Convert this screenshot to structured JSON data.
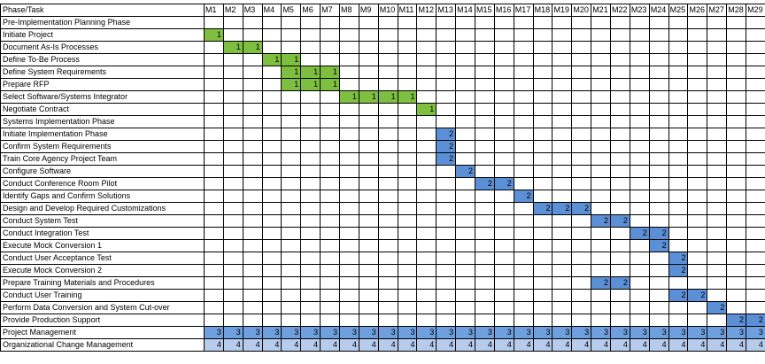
{
  "header": {
    "phase_task": "Phase/Task",
    "months": [
      "M1",
      "M2",
      "M3",
      "M4",
      "M5",
      "M6",
      "M7",
      "M8",
      "M9",
      "M10",
      "M11",
      "M12",
      "M13",
      "M14",
      "M15",
      "M16",
      "M17",
      "M18",
      "M19",
      "M20",
      "M21",
      "M22",
      "M23",
      "M24",
      "M25",
      "M26",
      "M27",
      "M28",
      "M29"
    ]
  },
  "colors": {
    "1": "#7fbf3f",
    "2": "#5b8fd6",
    "3": "#6e9fde",
    "4": "#b7ccec"
  },
  "rows": [
    {
      "label": "Pre-Implementation Planning Phase",
      "type": "phase"
    },
    {
      "label": "Initiate Project",
      "cells": [
        [
          1,
          "1"
        ]
      ]
    },
    {
      "label": "Document As-Is Processes",
      "cells": [
        [
          2,
          "1"
        ],
        [
          3,
          "1"
        ]
      ]
    },
    {
      "label": "Define To-Be Process",
      "cells": [
        [
          4,
          "1"
        ],
        [
          5,
          "1"
        ]
      ]
    },
    {
      "label": "Define System Requirements",
      "cells": [
        [
          5,
          "1"
        ],
        [
          6,
          "1"
        ],
        [
          7,
          "1"
        ]
      ]
    },
    {
      "label": "Prepare RFP",
      "cells": [
        [
          5,
          "1"
        ],
        [
          6,
          "1"
        ],
        [
          7,
          "1"
        ]
      ]
    },
    {
      "label": "Select Software/Systems Integrator",
      "cells": [
        [
          8,
          "1"
        ],
        [
          9,
          "1"
        ],
        [
          10,
          "1"
        ],
        [
          11,
          "1"
        ]
      ]
    },
    {
      "label": "Negotiate Contract",
      "cells": [
        [
          12,
          "1"
        ]
      ],
      "sep": true
    },
    {
      "label": "Systems Implementation Phase",
      "type": "phase"
    },
    {
      "label": "Initiate Implementation Phase",
      "cells": [
        [
          13,
          "2"
        ]
      ]
    },
    {
      "label": "Confirm System Requirements",
      "cells": [
        [
          13,
          "2"
        ]
      ]
    },
    {
      "label": "Train Core Agency Project Team",
      "cells": [
        [
          13,
          "2"
        ]
      ]
    },
    {
      "label": "Configure Software",
      "cells": [
        [
          14,
          "2"
        ]
      ]
    },
    {
      "label": "Conduct Conference Room Pilot",
      "cells": [
        [
          15,
          "2"
        ],
        [
          16,
          "2"
        ]
      ]
    },
    {
      "label": "Identify Gaps and Confirm Solutions",
      "cells": [
        [
          17,
          "2"
        ]
      ]
    },
    {
      "label": "Design and Develop Required Customizations",
      "cells": [
        [
          18,
          "2"
        ],
        [
          19,
          "2"
        ],
        [
          20,
          "2"
        ]
      ]
    },
    {
      "label": "Conduct System Test",
      "cells": [
        [
          21,
          "2"
        ],
        [
          22,
          "2"
        ]
      ]
    },
    {
      "label": "Conduct Integration Test",
      "cells": [
        [
          23,
          "2"
        ],
        [
          24,
          "2"
        ]
      ]
    },
    {
      "label": "Execute Mock Conversion 1",
      "cells": [
        [
          24,
          "2"
        ]
      ]
    },
    {
      "label": "Conduct User Acceptance Test",
      "cells": [
        [
          25,
          "2"
        ]
      ]
    },
    {
      "label": "Execute Mock Conversion 2",
      "cells": [
        [
          25,
          "2"
        ]
      ]
    },
    {
      "label": "Prepare Training Materials and Procedures",
      "cells": [
        [
          21,
          "2"
        ],
        [
          22,
          "2"
        ]
      ]
    },
    {
      "label": "Conduct User Training",
      "cells": [
        [
          25,
          "2"
        ],
        [
          26,
          "2"
        ]
      ]
    },
    {
      "label": "Perform Data Conversion and System Cut-over",
      "cells": [
        [
          27,
          "2"
        ]
      ]
    },
    {
      "label": "Provide Production Support",
      "cells": [
        [
          28,
          "2"
        ],
        [
          29,
          "2"
        ]
      ],
      "sep": true
    },
    {
      "label": "Project Management",
      "fill": "3"
    },
    {
      "label": "Organizational Change Management",
      "fill": "4"
    }
  ]
}
